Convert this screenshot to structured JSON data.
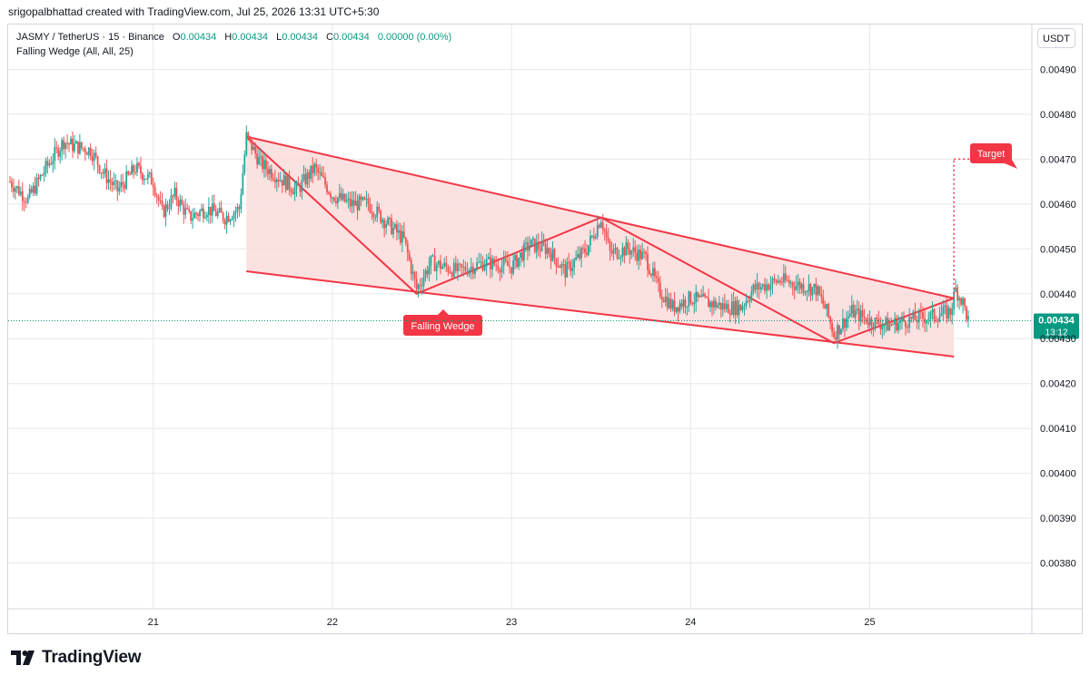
{
  "header": {
    "attribution": "srigopalbhattad created with TradingView.com, Jul 25, 2026 13:31 UTC+5:30"
  },
  "legend": {
    "symbol": "JASMY / TetherUS · 15 · Binance",
    "o_label": "O",
    "o_value": "0.00434",
    "h_label": "H",
    "h_value": "0.00434",
    "l_label": "L",
    "l_value": "0.00434",
    "c_label": "C",
    "c_value": "0.00434",
    "change": "0.00000 (0.00%)",
    "indicator": "Falling Wedge (All, All, 25)"
  },
  "currency_button": "USDT",
  "price_badge": {
    "price": "0.00434",
    "countdown": "13:12",
    "value": 0.00434
  },
  "annotations": {
    "pattern_label": "Falling Wedge",
    "target_label": "Target"
  },
  "logo": {
    "text": "TradingView"
  },
  "colors": {
    "up": "#26a69a",
    "down": "#ef5350",
    "pattern": "#f23645",
    "fill": "#fcdcdc",
    "grid": "#e6e8ec",
    "price_line": "#089981"
  },
  "chart_data": {
    "type": "candlestick",
    "title": "JASMY / TetherUS · 15 · Binance",
    "ylim": [
      0.0037,
      0.005
    ],
    "xlim": [
      20.19,
      25.9
    ],
    "y_ticks": [
      "0.00490",
      "0.00480",
      "0.00470",
      "0.00460",
      "0.00450",
      "0.00440",
      "0.00430",
      "0.00420",
      "0.00410",
      "0.00400",
      "0.00390",
      "0.00380"
    ],
    "x_ticks": [
      {
        "value": 21,
        "label": "21"
      },
      {
        "value": 22,
        "label": "22"
      },
      {
        "value": 23,
        "label": "23"
      },
      {
        "value": 24,
        "label": "24"
      },
      {
        "value": 25,
        "label": "25"
      }
    ],
    "grid": true,
    "close_series": [
      [
        20.2,
        0.00465
      ],
      [
        20.3,
        0.00461
      ],
      [
        20.4,
        0.00468
      ],
      [
        20.5,
        0.00474
      ],
      [
        20.55,
        0.00473
      ],
      [
        20.65,
        0.00472
      ],
      [
        20.72,
        0.00467
      ],
      [
        20.8,
        0.00463
      ],
      [
        20.9,
        0.00468
      ],
      [
        21.0,
        0.00465
      ],
      [
        21.05,
        0.00458
      ],
      [
        21.12,
        0.00462
      ],
      [
        21.2,
        0.00457
      ],
      [
        21.3,
        0.00459
      ],
      [
        21.4,
        0.00457
      ],
      [
        21.48,
        0.00459
      ],
      [
        21.52,
        0.00475
      ],
      [
        21.6,
        0.00469
      ],
      [
        21.7,
        0.00466
      ],
      [
        21.8,
        0.00463
      ],
      [
        21.9,
        0.00468
      ],
      [
        22.0,
        0.00462
      ],
      [
        22.1,
        0.0046
      ],
      [
        22.2,
        0.0046
      ],
      [
        22.3,
        0.00456
      ],
      [
        22.4,
        0.00452
      ],
      [
        22.47,
        0.00441
      ],
      [
        22.55,
        0.00447
      ],
      [
        22.7,
        0.00445
      ],
      [
        22.85,
        0.00447
      ],
      [
        23.0,
        0.00446
      ],
      [
        23.1,
        0.00451
      ],
      [
        23.2,
        0.0045
      ],
      [
        23.3,
        0.00445
      ],
      [
        23.42,
        0.0045
      ],
      [
        23.5,
        0.00457
      ],
      [
        23.55,
        0.00449
      ],
      [
        23.65,
        0.0045
      ],
      [
        23.75,
        0.00448
      ],
      [
        23.82,
        0.00441
      ],
      [
        23.9,
        0.00437
      ],
      [
        24.0,
        0.00439
      ],
      [
        24.1,
        0.00438
      ],
      [
        24.2,
        0.00437
      ],
      [
        24.28,
        0.00437
      ],
      [
        24.35,
        0.00441
      ],
      [
        24.5,
        0.00443
      ],
      [
        24.6,
        0.00442
      ],
      [
        24.7,
        0.00441
      ],
      [
        24.76,
        0.00436
      ],
      [
        24.8,
        0.00431
      ],
      [
        24.9,
        0.00436
      ],
      [
        25.0,
        0.00434
      ],
      [
        25.1,
        0.00433
      ],
      [
        25.2,
        0.00434
      ],
      [
        25.35,
        0.00435
      ],
      [
        25.45,
        0.00436
      ],
      [
        25.48,
        0.00441
      ],
      [
        25.52,
        0.00438
      ],
      [
        25.55,
        0.00434
      ]
    ],
    "pattern": {
      "name": "Falling Wedge",
      "upper_line": [
        [
          21.52,
          0.00475
        ],
        [
          25.47,
          0.00439
        ]
      ],
      "lower_line": [
        [
          21.52,
          0.00445
        ],
        [
          25.47,
          0.00426
        ]
      ],
      "zigzag": [
        [
          21.52,
          0.00475
        ],
        [
          22.47,
          0.0044
        ],
        [
          23.5,
          0.00457
        ],
        [
          24.8,
          0.00429
        ],
        [
          25.47,
          0.00439
        ]
      ],
      "target": [
        25.47,
        0.0047
      ]
    }
  }
}
